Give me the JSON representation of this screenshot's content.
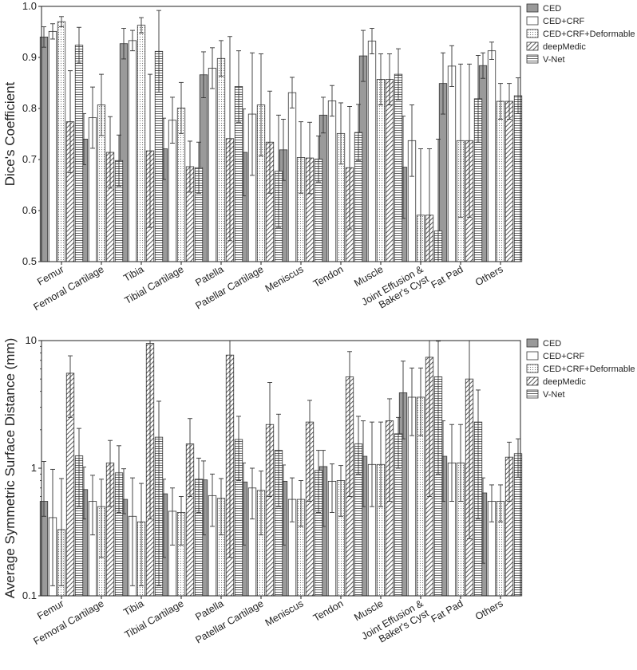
{
  "chart_data": [
    {
      "type": "bar",
      "ylabel": "Dice's Coefficient",
      "ylim": [
        0.5,
        1.0
      ],
      "yscale": "linear",
      "yticks": [
        "0.5",
        "0.6",
        "0.7",
        "0.8",
        "0.9",
        "1.0"
      ],
      "legend_position": "right",
      "categories": [
        "Femur",
        "Femoral Cartilage",
        "Tibia",
        "Tibial Cartilage",
        "Patella",
        "Patellar Cartilage",
        "Meniscus",
        "Tendon",
        "Muscle",
        "Joint Effusion &\nBaker's Cyst",
        "Fat Pad",
        "Others"
      ],
      "series": [
        {
          "name": "CED",
          "pattern": "solid-gray",
          "values": [
            0.94,
            0.74,
            0.927,
            0.721,
            0.866,
            0.714,
            0.719,
            0.787,
            0.903,
            0.685,
            0.849,
            0.884
          ],
          "err": [
            0.02,
            0.05,
            0.03,
            0.06,
            0.045,
            0.085,
            0.06,
            0.035,
            0.05,
            0.1,
            0.06,
            0.025
          ]
        },
        {
          "name": "CED+CRF",
          "pattern": "white",
          "values": [
            0.951,
            0.782,
            0.933,
            0.777,
            0.879,
            0.789,
            0.831,
            0.815,
            0.932,
            0.737,
            0.883,
            0.913
          ],
          "err": [
            0.015,
            0.06,
            0.02,
            0.045,
            0.04,
            0.12,
            0.03,
            0.03,
            0.025,
            0.07,
            0.04,
            0.017
          ]
        },
        {
          "name": "CED+CRF+Deformable",
          "pattern": "dots",
          "values": [
            0.97,
            0.807,
            0.963,
            0.801,
            0.898,
            0.807,
            0.704,
            0.751,
            0.857,
            0.591,
            0.737,
            0.814
          ],
          "err": [
            0.01,
            0.06,
            0.015,
            0.05,
            0.035,
            0.1,
            0.07,
            0.06,
            0.05,
            0.13,
            0.15,
            0.035
          ]
        },
        {
          "name": "deepMedic",
          "pattern": "diagonal",
          "values": [
            0.774,
            0.714,
            0.717,
            0.686,
            0.741,
            0.734,
            0.703,
            0.684,
            0.857,
            0.591,
            0.737,
            0.814
          ],
          "err": [
            0.1,
            0.07,
            0.15,
            0.05,
            0.2,
            0.1,
            0.07,
            0.12,
            0.05,
            0.13,
            0.15,
            0.035
          ]
        },
        {
          "name": "V-Net",
          "pattern": "horizontal",
          "values": [
            0.924,
            0.698,
            0.912,
            0.684,
            0.843,
            0.677,
            0.701,
            0.753,
            0.867,
            0.56,
            0.819,
            0.825
          ],
          "err": [
            0.035,
            0.05,
            0.08,
            0.05,
            0.07,
            0.11,
            0.045,
            0.055,
            0.05,
            0.18,
            0.085,
            0.035
          ]
        }
      ]
    },
    {
      "type": "bar",
      "ylabel": "Average Symmetric Surface Distance (mm)",
      "ylim": [
        0.1,
        10
      ],
      "yscale": "log",
      "yticks": [
        "0.1",
        "1",
        "10"
      ],
      "legend_position": "right",
      "categories": [
        "Femur",
        "Femoral Cartilage",
        "Tibia",
        "Tibial Cartilage",
        "Patella",
        "Patellar Cartilage",
        "Meniscus",
        "Tendon",
        "Muscle",
        "Joint Effusion &\nBaker's Cyst",
        "Fat Pad",
        "Others"
      ],
      "series": [
        {
          "name": "CED",
          "pattern": "solid-gray",
          "values": [
            0.55,
            0.68,
            0.57,
            0.63,
            0.81,
            0.78,
            0.79,
            1.03,
            1.24,
            3.9,
            1.24,
            0.64
          ],
          "err_low": [
            0.42,
            0.4,
            0.44,
            0.2,
            0.3,
            0.25,
            0.25,
            0.35,
            0.5,
            1.7,
            0.55,
            0.18
          ],
          "err_high": [
            1.13,
            1.02,
            0.99,
            0.82,
            1.14,
            1.1,
            1.06,
            1.38,
            2.35,
            6.9,
            2.35,
            0.84
          ]
        },
        {
          "name": "CED+CRF",
          "pattern": "white",
          "values": [
            0.41,
            0.55,
            0.42,
            0.46,
            0.61,
            0.7,
            0.57,
            0.79,
            1.07,
            3.6,
            1.1,
            0.55
          ],
          "err_low": [
            0.12,
            0.3,
            0.12,
            0.25,
            0.35,
            0.4,
            0.38,
            0.45,
            0.5,
            1.8,
            0.55,
            0.38
          ],
          "err_high": [
            0.98,
            0.88,
            0.84,
            0.7,
            0.9,
            1.0,
            0.84,
            1.08,
            2.3,
            6.1,
            2.2,
            0.74
          ]
        },
        {
          "name": "CED+CRF+Deformable",
          "pattern": "dots",
          "values": [
            0.33,
            0.5,
            0.38,
            0.45,
            0.58,
            0.67,
            0.57,
            0.8,
            1.07,
            3.6,
            1.1,
            0.55
          ],
          "err_low": [
            0.12,
            0.2,
            0.12,
            0.25,
            0.3,
            0.3,
            0.35,
            0.42,
            0.5,
            1.8,
            0.55,
            0.38
          ],
          "err_high": [
            0.83,
            0.82,
            0.76,
            0.6,
            0.83,
            0.95,
            0.8,
            1.05,
            2.3,
            6.1,
            2.2,
            0.74
          ]
        },
        {
          "name": "deepMedic",
          "pattern": "diagonal",
          "values": [
            5.55,
            1.1,
            9.5,
            1.55,
            7.7,
            2.2,
            2.3,
            5.2,
            2.35,
            7.4,
            5.0,
            1.22
          ],
          "err_low": [
            2.5,
            0.5,
            0.4,
            0.6,
            0.2,
            0.6,
            0.55,
            0.6,
            0.55,
            0.6,
            0.28,
            0.55
          ],
          "err_high": [
            7.6,
            1.65,
            10,
            2.45,
            10,
            4.7,
            3.4,
            8.2,
            3.5,
            10,
            10,
            1.6
          ]
        },
        {
          "name": "V-Net",
          "pattern": "horizontal",
          "values": [
            1.25,
            0.92,
            1.75,
            0.82,
            1.68,
            1.38,
            0.96,
            1.55,
            1.86,
            5.2,
            2.3,
            1.3
          ],
          "err_low": [
            0.5,
            0.45,
            0.12,
            0.45,
            0.8,
            0.5,
            0.45,
            0.9,
            1.0,
            0.9,
            0.4,
            0.85
          ],
          "err_high": [
            2.05,
            1.5,
            3.35,
            1.2,
            2.55,
            2.65,
            1.38,
            2.55,
            2.5,
            9.9,
            4.1,
            1.7
          ]
        }
      ]
    }
  ]
}
